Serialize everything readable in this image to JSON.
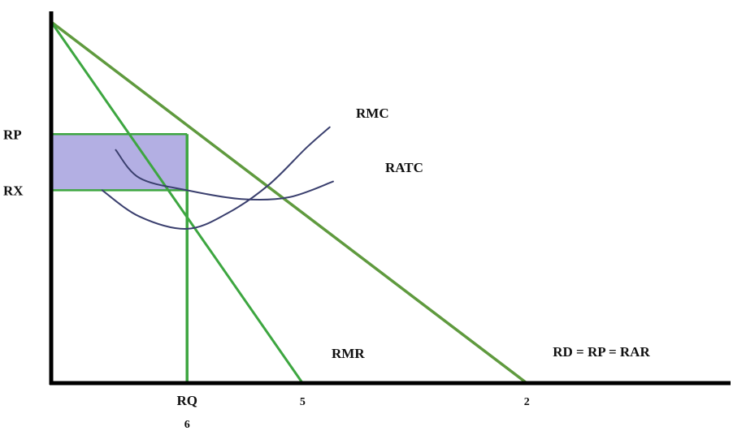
{
  "chart_data": {
    "type": "line",
    "title": "",
    "xlabel": "",
    "ylabel": "",
    "xlim": [
      0,
      10
    ],
    "ylim": [
      0,
      10
    ],
    "grid": false,
    "colors": {
      "demand": "#5f9a3e",
      "mr": "#3da640",
      "cost_curves": "#3a3f6e",
      "profit_area": "#b3afe3",
      "guides": "#3da640",
      "axis": "#000000"
    },
    "y_labels": [
      {
        "text": "RP",
        "y": 7.1
      },
      {
        "text": "RX",
        "y": 5.5
      }
    ],
    "x_labels": [
      {
        "text": "RQ",
        "x": 2.0
      },
      {
        "text": "5",
        "x": 3.7
      },
      {
        "text": "2",
        "x": 7.0
      },
      {
        "text": "6",
        "x": 2.0
      }
    ],
    "series": [
      {
        "name": "RD = RP = RAR",
        "kind": "demand",
        "x": [
          0.0,
          7.0
        ],
        "y": [
          10.3,
          0.0
        ]
      },
      {
        "name": "RMR",
        "kind": "mr",
        "x": [
          0.0,
          3.7
        ],
        "y": [
          10.3,
          0.0
        ]
      },
      {
        "name": "RMC",
        "kind": "cost",
        "x": [
          0.75,
          1.3,
          2.0,
          2.6,
          3.2,
          3.75,
          4.1
        ],
        "y": [
          5.5,
          4.75,
          4.4,
          4.85,
          5.65,
          6.7,
          7.3
        ]
      },
      {
        "name": "RATC",
        "kind": "cost",
        "x": [
          0.95,
          1.3,
          2.0,
          2.8,
          3.5,
          4.15
        ],
        "y": [
          6.65,
          5.85,
          5.5,
          5.25,
          5.3,
          5.75
        ]
      }
    ],
    "profit_rectangle": {
      "x": [
        0.0,
        2.0
      ],
      "y": [
        5.5,
        7.1
      ]
    },
    "guide_lines": [
      {
        "from": [
          0.0,
          7.1
        ],
        "to": [
          2.0,
          7.1
        ]
      },
      {
        "from": [
          0.0,
          5.5
        ],
        "to": [
          2.0,
          5.5
        ]
      },
      {
        "from": [
          2.0,
          0.0
        ],
        "to": [
          2.0,
          7.1
        ]
      }
    ]
  }
}
